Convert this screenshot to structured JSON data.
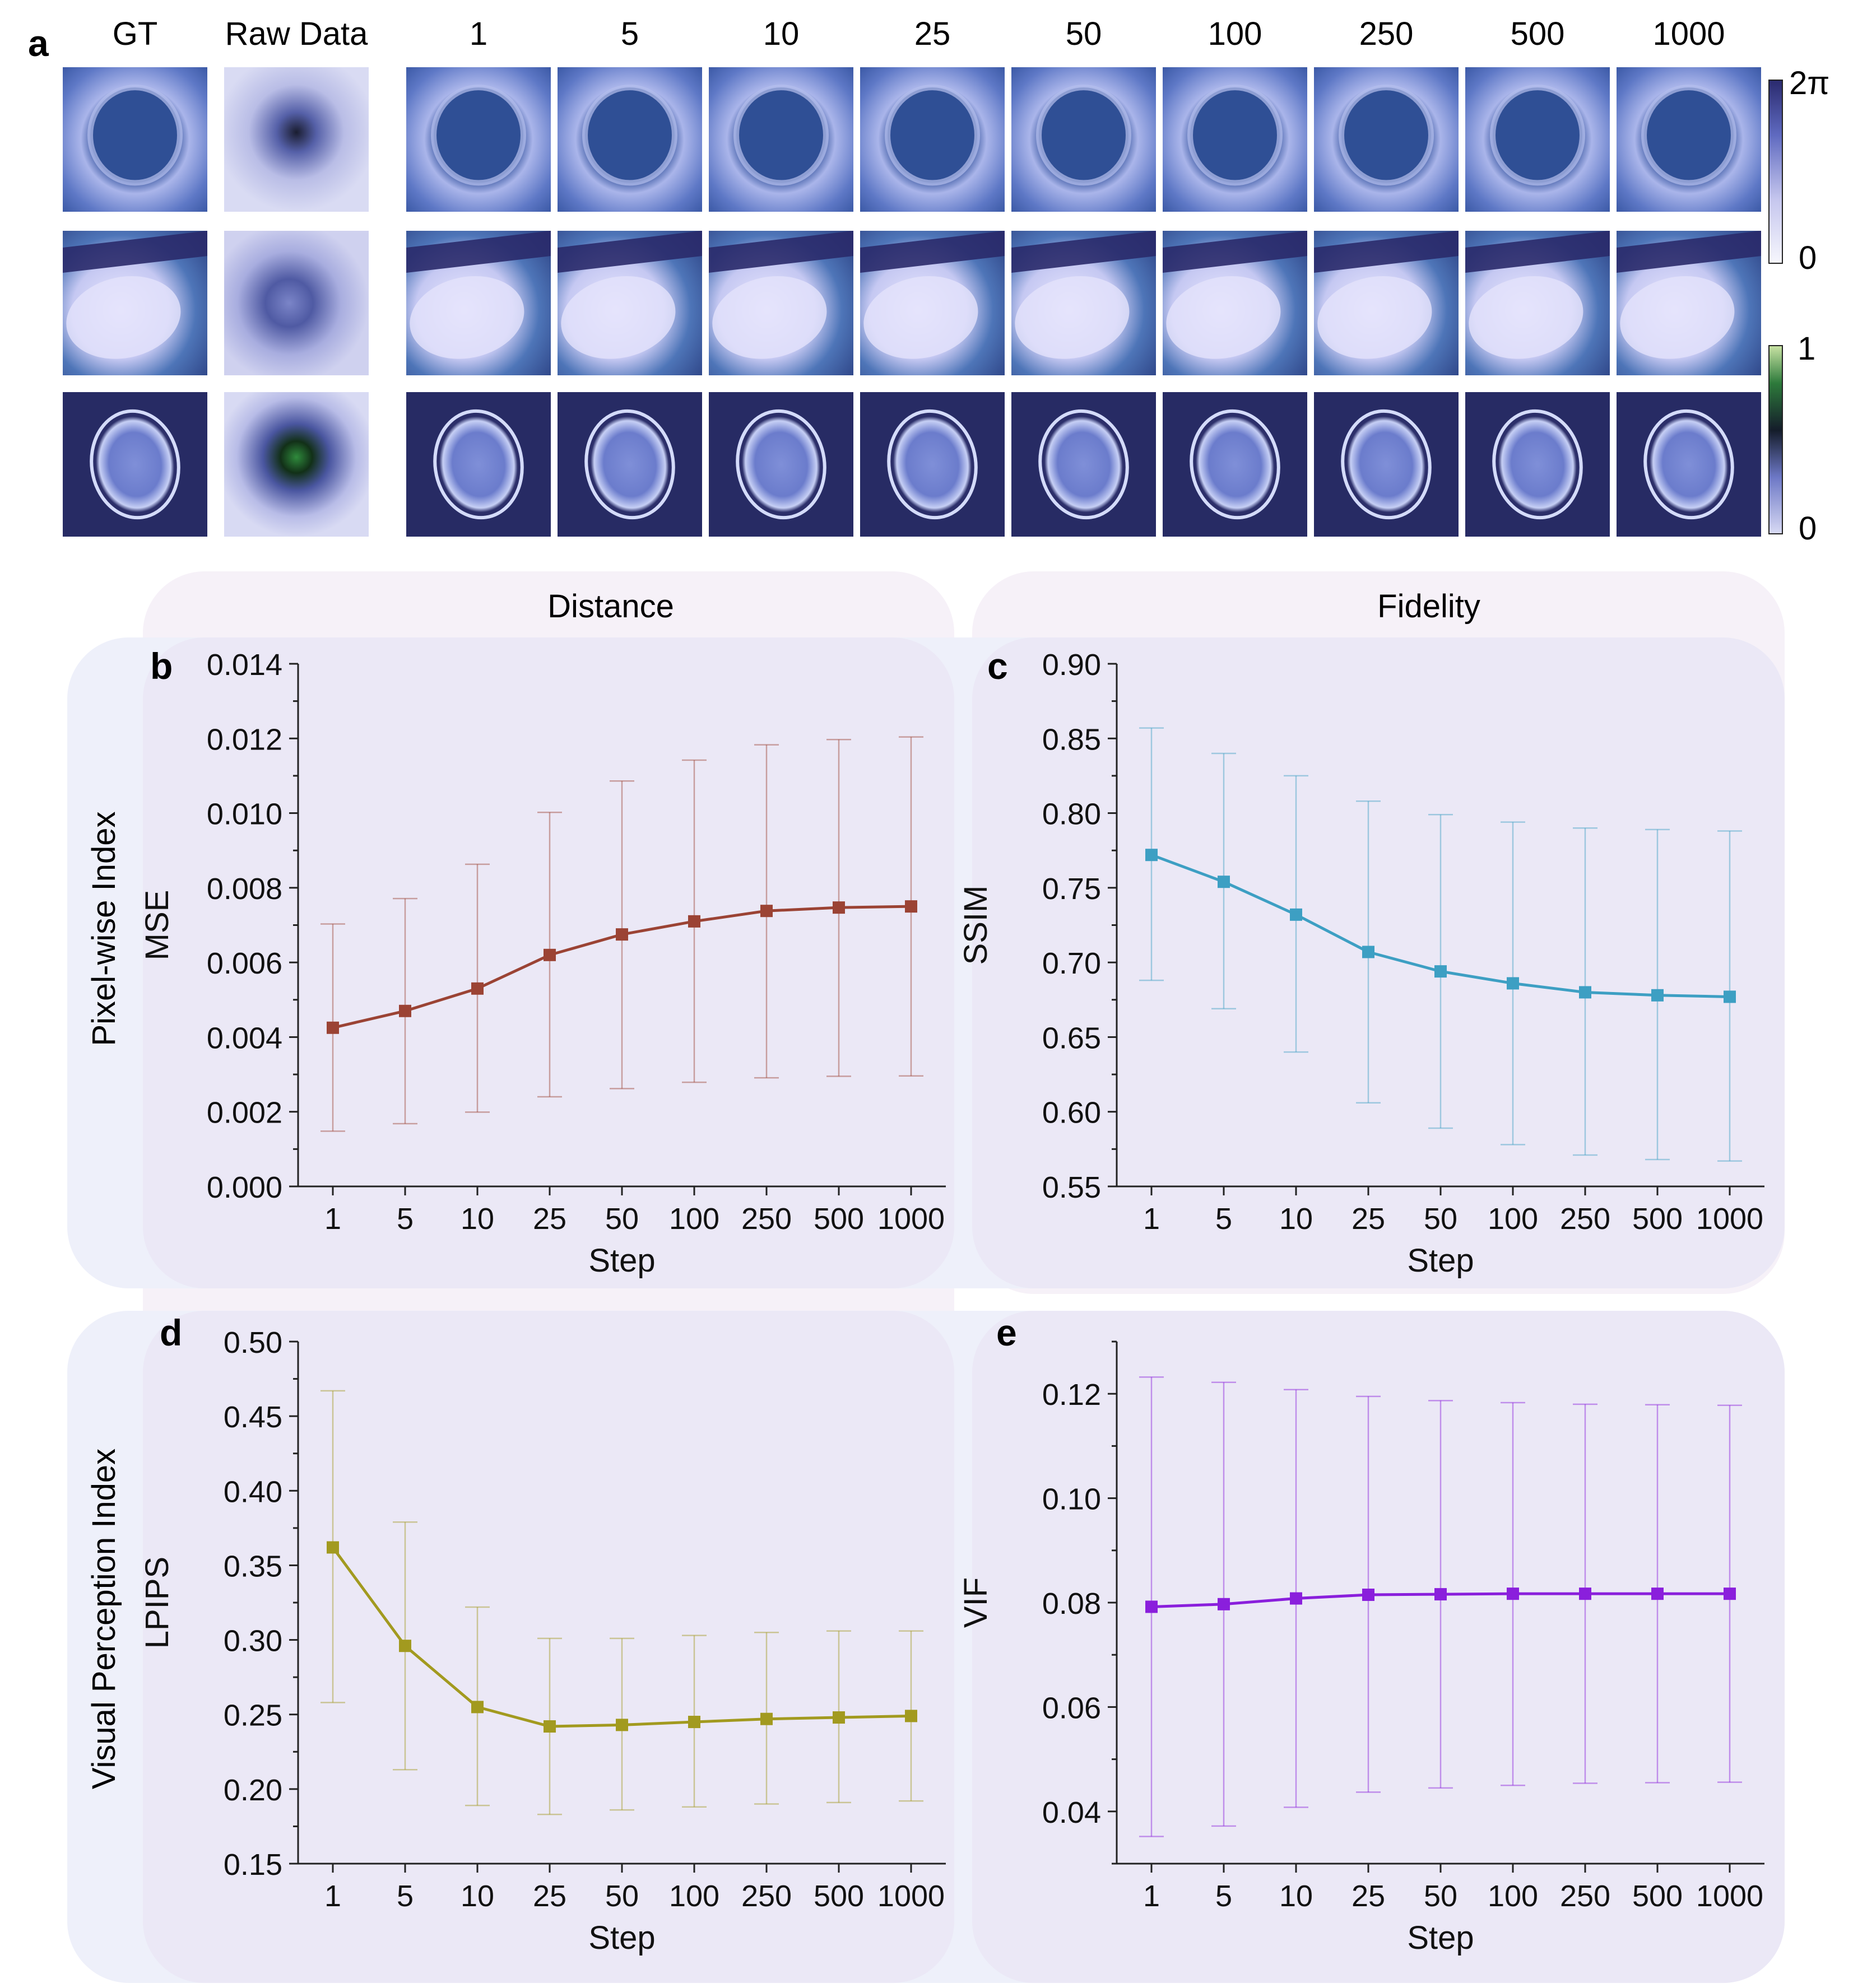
{
  "panel_letters": {
    "a": "a",
    "b": "b",
    "c": "c",
    "d": "d",
    "e": "e"
  },
  "panel_a": {
    "column_headers": [
      "GT",
      "Raw Data",
      "1",
      "5",
      "10",
      "25",
      "50",
      "100",
      "250",
      "500",
      "1000"
    ],
    "colorbar_phase": {
      "max_label": "2π",
      "min_label": "0"
    },
    "colorbar_raw": {
      "max_label": "1",
      "min_label": "0"
    }
  },
  "group_labels": {
    "distance": "Distance",
    "fidelity": "Fidelity",
    "pixel_wise": "Pixel-wise Index",
    "visual_perception": "Visual Perception Index"
  },
  "colors": {
    "mse": "#9b4334",
    "ssim": "#3d9fc3",
    "lpips": "#a29a1f",
    "vif": "#8a1fdc",
    "bg_col": "#f6f1f8",
    "bg_row": "#eef0fa",
    "bg_cell": "#ebe8f6"
  },
  "chart_data": [
    {
      "id": "b",
      "type": "line",
      "title": "",
      "categories": [
        "1",
        "5",
        "10",
        "25",
        "50",
        "100",
        "250",
        "500",
        "1000"
      ],
      "series": [
        {
          "name": "MSE",
          "values": [
            0.00425,
            0.0047,
            0.0053,
            0.0062,
            0.00675,
            0.0071,
            0.00738,
            0.00747,
            0.0075
          ],
          "err_low": [
            0.00148,
            0.00168,
            0.00199,
            0.0024,
            0.00262,
            0.00279,
            0.00291,
            0.00295,
            0.00296
          ],
          "err_high": [
            0.00703,
            0.00771,
            0.00863,
            0.01002,
            0.01086,
            0.01142,
            0.01183,
            0.01197,
            0.01204
          ]
        }
      ],
      "xlabel": "Step",
      "ylabel": "MSE",
      "ylim": [
        0.0,
        0.014
      ],
      "yticks": [
        0.0,
        0.002,
        0.004,
        0.006,
        0.008,
        0.01,
        0.012,
        0.014
      ],
      "ytick_labels": [
        "0.000",
        "0.002",
        "0.004",
        "0.006",
        "0.008",
        "0.010",
        "0.012",
        "0.014"
      ]
    },
    {
      "id": "c",
      "type": "line",
      "title": "",
      "categories": [
        "1",
        "5",
        "10",
        "25",
        "50",
        "100",
        "250",
        "500",
        "1000"
      ],
      "series": [
        {
          "name": "SSIM",
          "values": [
            0.772,
            0.754,
            0.732,
            0.707,
            0.694,
            0.686,
            0.68,
            0.678,
            0.677
          ],
          "err_low": [
            0.688,
            0.669,
            0.64,
            0.606,
            0.589,
            0.578,
            0.571,
            0.568,
            0.567
          ],
          "err_high": [
            0.857,
            0.84,
            0.825,
            0.808,
            0.799,
            0.794,
            0.79,
            0.789,
            0.788
          ]
        }
      ],
      "xlabel": "Step",
      "ylabel": "SSIM",
      "ylim": [
        0.55,
        0.9
      ],
      "yticks": [
        0.55,
        0.6,
        0.65,
        0.7,
        0.75,
        0.8,
        0.85,
        0.9
      ],
      "ytick_labels": [
        "0.55",
        "0.60",
        "0.65",
        "0.70",
        "0.75",
        "0.80",
        "0.85",
        "0.90"
      ]
    },
    {
      "id": "d",
      "type": "line",
      "title": "",
      "categories": [
        "1",
        "5",
        "10",
        "25",
        "50",
        "100",
        "250",
        "500",
        "1000"
      ],
      "series": [
        {
          "name": "LPIPS",
          "values": [
            0.362,
            0.296,
            0.255,
            0.242,
            0.243,
            0.245,
            0.247,
            0.248,
            0.249
          ],
          "err_low": [
            0.258,
            0.213,
            0.189,
            0.183,
            0.186,
            0.188,
            0.19,
            0.191,
            0.192
          ],
          "err_high": [
            0.467,
            0.379,
            0.322,
            0.301,
            0.301,
            0.303,
            0.305,
            0.306,
            0.306
          ]
        }
      ],
      "xlabel": "Step",
      "ylabel": "LPIPS",
      "ylim": [
        0.15,
        0.5
      ],
      "yticks": [
        0.15,
        0.2,
        0.25,
        0.3,
        0.35,
        0.4,
        0.45,
        0.5
      ],
      "ytick_labels": [
        "0.15",
        "0.20",
        "0.25",
        "0.30",
        "0.35",
        "0.40",
        "0.45",
        "0.50"
      ]
    },
    {
      "id": "e",
      "type": "line",
      "title": "",
      "categories": [
        "1",
        "5",
        "10",
        "25",
        "50",
        "100",
        "250",
        "500",
        "1000"
      ],
      "series": [
        {
          "name": "VIF",
          "values": [
            0.0792,
            0.0797,
            0.0808,
            0.0815,
            0.0816,
            0.0817,
            0.0817,
            0.0817,
            0.0817
          ],
          "err_low": [
            0.0352,
            0.0372,
            0.0408,
            0.0437,
            0.0445,
            0.045,
            0.0454,
            0.0455,
            0.0456
          ],
          "err_high": [
            0.1232,
            0.1222,
            0.1208,
            0.1195,
            0.1187,
            0.1183,
            0.118,
            0.1179,
            0.1178
          ]
        }
      ],
      "xlabel": "Step",
      "ylabel": "VIF",
      "ylim": [
        0.03,
        0.13
      ],
      "yticks": [
        0.04,
        0.06,
        0.08,
        0.1,
        0.12
      ],
      "ytick_labels": [
        "0.04",
        "0.06",
        "0.08",
        "0.10",
        "0.12"
      ]
    }
  ]
}
